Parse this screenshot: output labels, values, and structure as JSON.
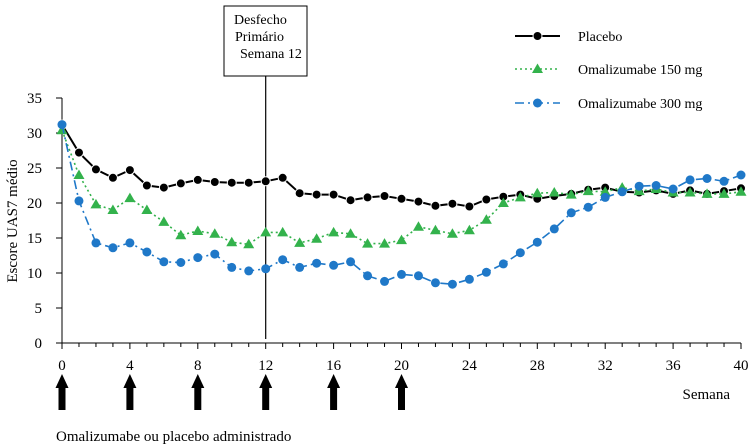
{
  "chart_data": {
    "type": "line",
    "ylabel": "Escore UAS7 médio",
    "xlabel": "Semana",
    "ylim": [
      0,
      35
    ],
    "xlim": [
      0,
      40
    ],
    "yticks": [
      0,
      5,
      10,
      15,
      20,
      25,
      30,
      35
    ],
    "xticks": [
      0,
      4,
      8,
      12,
      16,
      20,
      24,
      28,
      32,
      36,
      40
    ],
    "grid": false,
    "legend_position": "top-right",
    "annotation": {
      "lines": [
        "Desfecho",
        "Primário",
        "Semana 12"
      ],
      "x": 12
    },
    "dosing_note": "Omalizumabe ou placebo administrado",
    "dosing_weeks": [
      0,
      4,
      8,
      12,
      16,
      20
    ],
    "x": [
      0,
      1,
      2,
      3,
      4,
      5,
      6,
      7,
      8,
      9,
      10,
      11,
      12,
      13,
      14,
      15,
      16,
      17,
      18,
      19,
      20,
      21,
      22,
      23,
      24,
      25,
      26,
      27,
      28,
      29,
      30,
      31,
      32,
      33,
      34,
      35,
      36,
      37,
      38,
      39,
      40
    ],
    "series": [
      {
        "name": "Placebo",
        "color": "#000000",
        "marker": "circle",
        "line_style": "solid",
        "values": [
          31.2,
          27.2,
          24.8,
          23.6,
          24.7,
          22.5,
          22.2,
          22.8,
          23.3,
          23.0,
          22.9,
          22.9,
          23.1,
          23.6,
          21.4,
          21.2,
          21.2,
          20.4,
          20.8,
          21.0,
          20.6,
          20.2,
          19.6,
          19.9,
          19.5,
          20.5,
          20.9,
          21.2,
          20.6,
          21.0,
          21.3,
          21.9,
          22.2,
          21.6,
          21.5,
          21.8,
          21.3,
          21.8,
          21.3,
          21.7,
          22.1
        ]
      },
      {
        "name": "Omalizumabe 150 mg",
        "color": "#33b24c",
        "marker": "triangle",
        "line_style": "dotted",
        "values": [
          30.4,
          24.0,
          19.8,
          19.0,
          20.7,
          19.0,
          17.3,
          15.4,
          16.0,
          15.6,
          14.4,
          14.1,
          15.8,
          15.8,
          14.3,
          14.9,
          15.8,
          15.6,
          14.2,
          14.2,
          14.7,
          16.6,
          16.1,
          15.6,
          16.1,
          17.6,
          20.0,
          20.8,
          21.4,
          21.5,
          21.2,
          21.7,
          21.6,
          22.2,
          21.7,
          22.0,
          21.5,
          21.5,
          21.3,
          21.3,
          21.6
        ]
      },
      {
        "name": "Omalizumabe 300 mg",
        "color": "#1f78c8",
        "marker": "circle",
        "line_style": "dashdot",
        "values": [
          31.2,
          20.3,
          14.3,
          13.6,
          14.3,
          13.0,
          11.6,
          11.5,
          12.2,
          12.7,
          10.8,
          10.3,
          10.6,
          11.9,
          10.8,
          11.4,
          11.1,
          11.6,
          9.6,
          8.8,
          9.8,
          9.6,
          8.6,
          8.4,
          9.1,
          10.1,
          11.3,
          12.9,
          14.4,
          16.3,
          18.6,
          19.4,
          20.8,
          21.6,
          22.4,
          22.5,
          22.0,
          23.3,
          23.5,
          23.1,
          24.0
        ]
      }
    ]
  }
}
